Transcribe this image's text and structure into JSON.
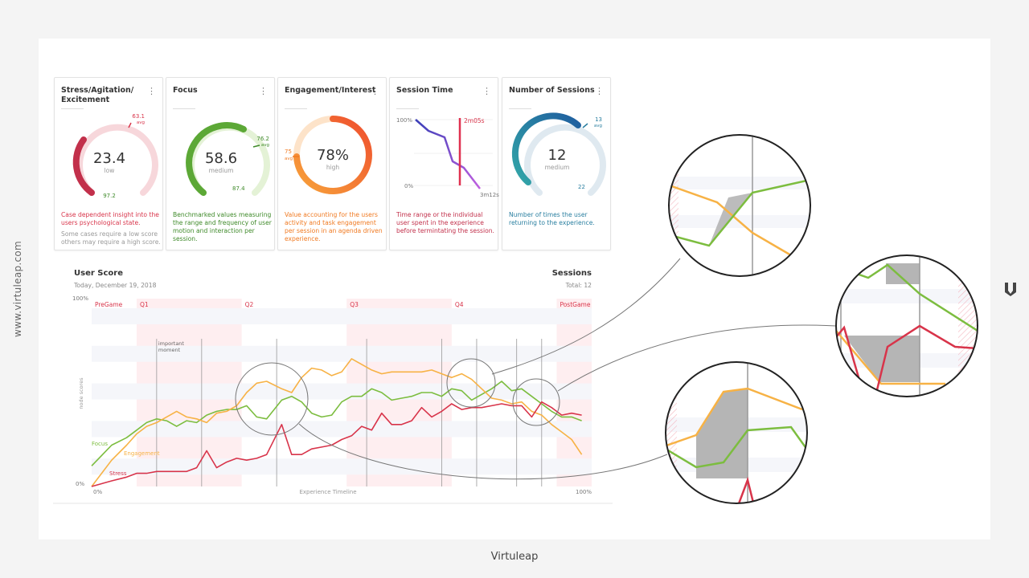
{
  "side_url": "www.virtuleap.com",
  "footer_text": "Virtuleap",
  "colors": {
    "stress": "#d8344a",
    "focus": "#5ca836",
    "engagement": "#f28a2e",
    "session": "#9b4dd6",
    "sessions": "#2a8fa6"
  },
  "cards": [
    {
      "title": "Stress/Agitation/ Excitement",
      "value": "23.4",
      "level": "low",
      "avg_value": "63.1",
      "avg_label": "avg",
      "max_label": "97.2",
      "desc": "Case dependent insight into the users psychological state.",
      "desc2": "Some cases require a low score others may require a high score.",
      "desc_color": "#d8344a"
    },
    {
      "title": "Focus",
      "value": "58.6",
      "level": "medium",
      "avg_value": "76.2",
      "avg_label": "avg",
      "max_label": "87.4",
      "desc": "Benchmarked values measuring the range and frequency of user motion and interaction per session.",
      "desc2": "",
      "desc_color": "#3f8a2a"
    },
    {
      "title": "Engagement/Interest",
      "value": "78%",
      "level": "high",
      "avg_value": "75",
      "avg_label": "avg",
      "max_label": "",
      "desc": "Value accounting for the users activity and task engagement per session in an agenda driven experience.",
      "desc2": "",
      "desc_color": "#f07a22"
    },
    {
      "title": "Session Time",
      "top_label": "100%",
      "bottom_label": "0%",
      "marker_label": "2m05s",
      "end_label": "3m12s",
      "desc": "Time range or the individual user spent in the experience before termintating the session.",
      "desc2": "",
      "desc_color": "#c2304b"
    },
    {
      "title": "Number of Sessions",
      "value": "12",
      "level": "medium",
      "avg_value": "13",
      "avg_label": "avg",
      "max_label": "22",
      "desc": "Number of times the user returning to the experience.",
      "desc2": "",
      "desc_color": "#2a7fa0"
    }
  ],
  "user_score": {
    "title": "User Score",
    "date": "Today, December 19, 2018",
    "sessions_title": "Sessions",
    "sessions_total": "Total: 12"
  },
  "chart_data": {
    "type": "line",
    "ylabel": "node scores",
    "xlabel": "Experience Timeline",
    "y_tick_top": "100%",
    "y_tick_bottom": "0%",
    "x_tick_left": "0%",
    "x_tick_right": "100%",
    "xlim": [
      0,
      100
    ],
    "ylim": [
      0,
      100
    ],
    "phases": [
      {
        "label": "PreGame",
        "start": 0,
        "end": 9,
        "shaded": false
      },
      {
        "label": "Q1",
        "start": 9,
        "end": 30,
        "shaded": true
      },
      {
        "label": "Q2",
        "start": 30,
        "end": 51,
        "shaded": false
      },
      {
        "label": "Q3",
        "start": 51,
        "end": 72,
        "shaded": true
      },
      {
        "label": "Q4",
        "start": 72,
        "end": 93,
        "shaded": false
      },
      {
        "label": "PostGame",
        "start": 93,
        "end": 100,
        "shaded": true
      }
    ],
    "event_lines": [
      13,
      22,
      37,
      55,
      70,
      77,
      85,
      90
    ],
    "annotation": {
      "text_line1": "important",
      "text_line2": "moment",
      "x": 13
    },
    "series": [
      {
        "name": "Focus",
        "color": "#7cbd3f",
        "x": [
          0,
          4,
          7,
          9,
          11,
          13,
          15,
          17,
          19,
          21,
          23,
          25,
          27,
          29,
          31,
          33,
          35,
          38,
          40,
          42,
          44,
          46,
          48,
          50,
          52,
          54,
          56,
          58,
          60,
          62,
          64,
          66,
          68,
          70,
          72,
          74,
          76,
          78,
          80,
          82,
          84,
          86,
          88,
          90,
          92,
          94,
          96,
          98
        ],
        "y": [
          11,
          22,
          26,
          30,
          34,
          36,
          35,
          32,
          35,
          34,
          38,
          40,
          41,
          41,
          43,
          37,
          36,
          46,
          48,
          45,
          39,
          37,
          38,
          45,
          48,
          48,
          52,
          50,
          46,
          47,
          48,
          50,
          50,
          48,
          52,
          51,
          46,
          49,
          52,
          56,
          51,
          52,
          48,
          44,
          40,
          37,
          37,
          35
        ]
      },
      {
        "name": "Engagement",
        "color": "#f7b245",
        "x": [
          0,
          4,
          7,
          9,
          11,
          13,
          15,
          17,
          19,
          21,
          23,
          25,
          27,
          29,
          31,
          33,
          35,
          38,
          40,
          42,
          44,
          46,
          48,
          50,
          52,
          54,
          56,
          58,
          60,
          62,
          64,
          66,
          68,
          70,
          72,
          74,
          76,
          78,
          80,
          82,
          84,
          86,
          88,
          90,
          92,
          94,
          96,
          98
        ],
        "y": [
          0,
          14,
          22,
          28,
          32,
          34,
          37,
          40,
          37,
          36,
          34,
          39,
          40,
          43,
          50,
          55,
          56,
          52,
          50,
          58,
          63,
          62,
          59,
          61,
          68,
          65,
          62,
          60,
          61,
          61,
          61,
          61,
          62,
          60,
          58,
          60,
          57,
          52,
          47,
          46,
          44,
          45,
          40,
          38,
          33,
          29,
          25,
          17
        ]
      },
      {
        "name": "Stress",
        "color": "#d8344a",
        "x": [
          0,
          4,
          7,
          9,
          11,
          13,
          15,
          17,
          19,
          21,
          23,
          25,
          27,
          29,
          31,
          33,
          35,
          38,
          40,
          42,
          44,
          46,
          48,
          50,
          52,
          54,
          56,
          58,
          60,
          62,
          64,
          66,
          68,
          70,
          72,
          74,
          76,
          78,
          80,
          82,
          84,
          86,
          88,
          90,
          92,
          94,
          96,
          98
        ],
        "y": [
          0,
          3,
          5,
          7,
          7,
          8,
          8,
          8,
          8,
          10,
          19,
          10,
          13,
          15,
          14,
          15,
          17,
          33,
          17,
          17,
          20,
          21,
          22,
          25,
          27,
          32,
          30,
          39,
          33,
          33,
          35,
          42,
          37,
          40,
          44,
          41,
          42,
          42,
          43,
          44,
          43,
          43,
          37,
          45,
          42,
          38,
          39,
          38
        ]
      }
    ],
    "series_labels": [
      {
        "text": "Focus",
        "series": "Focus"
      },
      {
        "text": "Engagement",
        "series": "Engagement"
      },
      {
        "text": "Stress",
        "series": "Stress"
      }
    ]
  }
}
